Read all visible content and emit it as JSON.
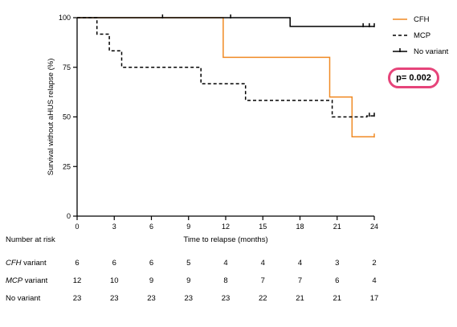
{
  "chart_data": {
    "type": "line",
    "step": true,
    "xlabel": "Time to relapse (months)",
    "ylabel": "Survival without aHUS relapse (%)",
    "xlim": [
      0,
      24
    ],
    "ylim": [
      0,
      100
    ],
    "xticks": [
      0,
      3,
      6,
      9,
      12,
      15,
      18,
      21,
      24
    ],
    "yticks": [
      0,
      25,
      50,
      75,
      100
    ],
    "legend_position": "top-right",
    "grid": false,
    "series": [
      {
        "name": "CFH",
        "color": "#f08a24",
        "dash": "solid",
        "x": [
          0,
          11.8,
          11.8,
          20.4,
          20.4,
          22.2,
          22.2,
          24
        ],
        "y": [
          100,
          100,
          80,
          80,
          60,
          60,
          40,
          40
        ],
        "censored": [
          {
            "x": 24,
            "y": 40
          }
        ]
      },
      {
        "name": "MCP",
        "color": "#000000",
        "dash": "dashed",
        "x": [
          0,
          1.6,
          1.6,
          2.6,
          2.6,
          3.6,
          3.6,
          10,
          10,
          13.6,
          13.6,
          20.6,
          20.6,
          23.4,
          23.4,
          24
        ],
        "y": [
          100,
          100,
          91.7,
          91.7,
          83.3,
          83.3,
          75,
          75,
          66.7,
          66.7,
          58.3,
          58.3,
          50,
          50,
          50.5,
          50.5
        ],
        "censored": [
          {
            "x": 23.6,
            "y": 50.5
          },
          {
            "x": 24,
            "y": 50.5
          }
        ]
      },
      {
        "name": "No variant",
        "color": "#000000",
        "dash": "solid",
        "x": [
          0,
          17.2,
          17.2,
          24
        ],
        "y": [
          100,
          100,
          95.6,
          95.6
        ],
        "censored": [
          {
            "x": 6.9,
            "y": 100
          },
          {
            "x": 12.4,
            "y": 100
          },
          {
            "x": 23.1,
            "y": 95.6
          },
          {
            "x": 23.6,
            "y": 95.6
          },
          {
            "x": 24,
            "y": 95.6
          }
        ]
      }
    ],
    "annotation": "p= 0.002"
  },
  "risk_table": {
    "title": "Number at risk",
    "time_points": [
      0,
      3,
      6,
      9,
      12,
      15,
      18,
      21,
      24
    ],
    "rows": [
      {
        "label_prefix": "CFH",
        "label_suffix": " variant",
        "italic": true,
        "values": [
          "6",
          "6",
          "6",
          "5",
          "4",
          "4",
          "4",
          "3",
          "2"
        ]
      },
      {
        "label_prefix": "MCP",
        "label_suffix": " variant",
        "italic": true,
        "values": [
          "12",
          "10",
          "9",
          "9",
          "8",
          "7",
          "7",
          "6",
          "4"
        ]
      },
      {
        "label_prefix": "No variant",
        "label_suffix": "",
        "italic": false,
        "values": [
          "23",
          "23",
          "23",
          "23",
          "23",
          "22",
          "21",
          "21",
          "17"
        ]
      }
    ]
  }
}
